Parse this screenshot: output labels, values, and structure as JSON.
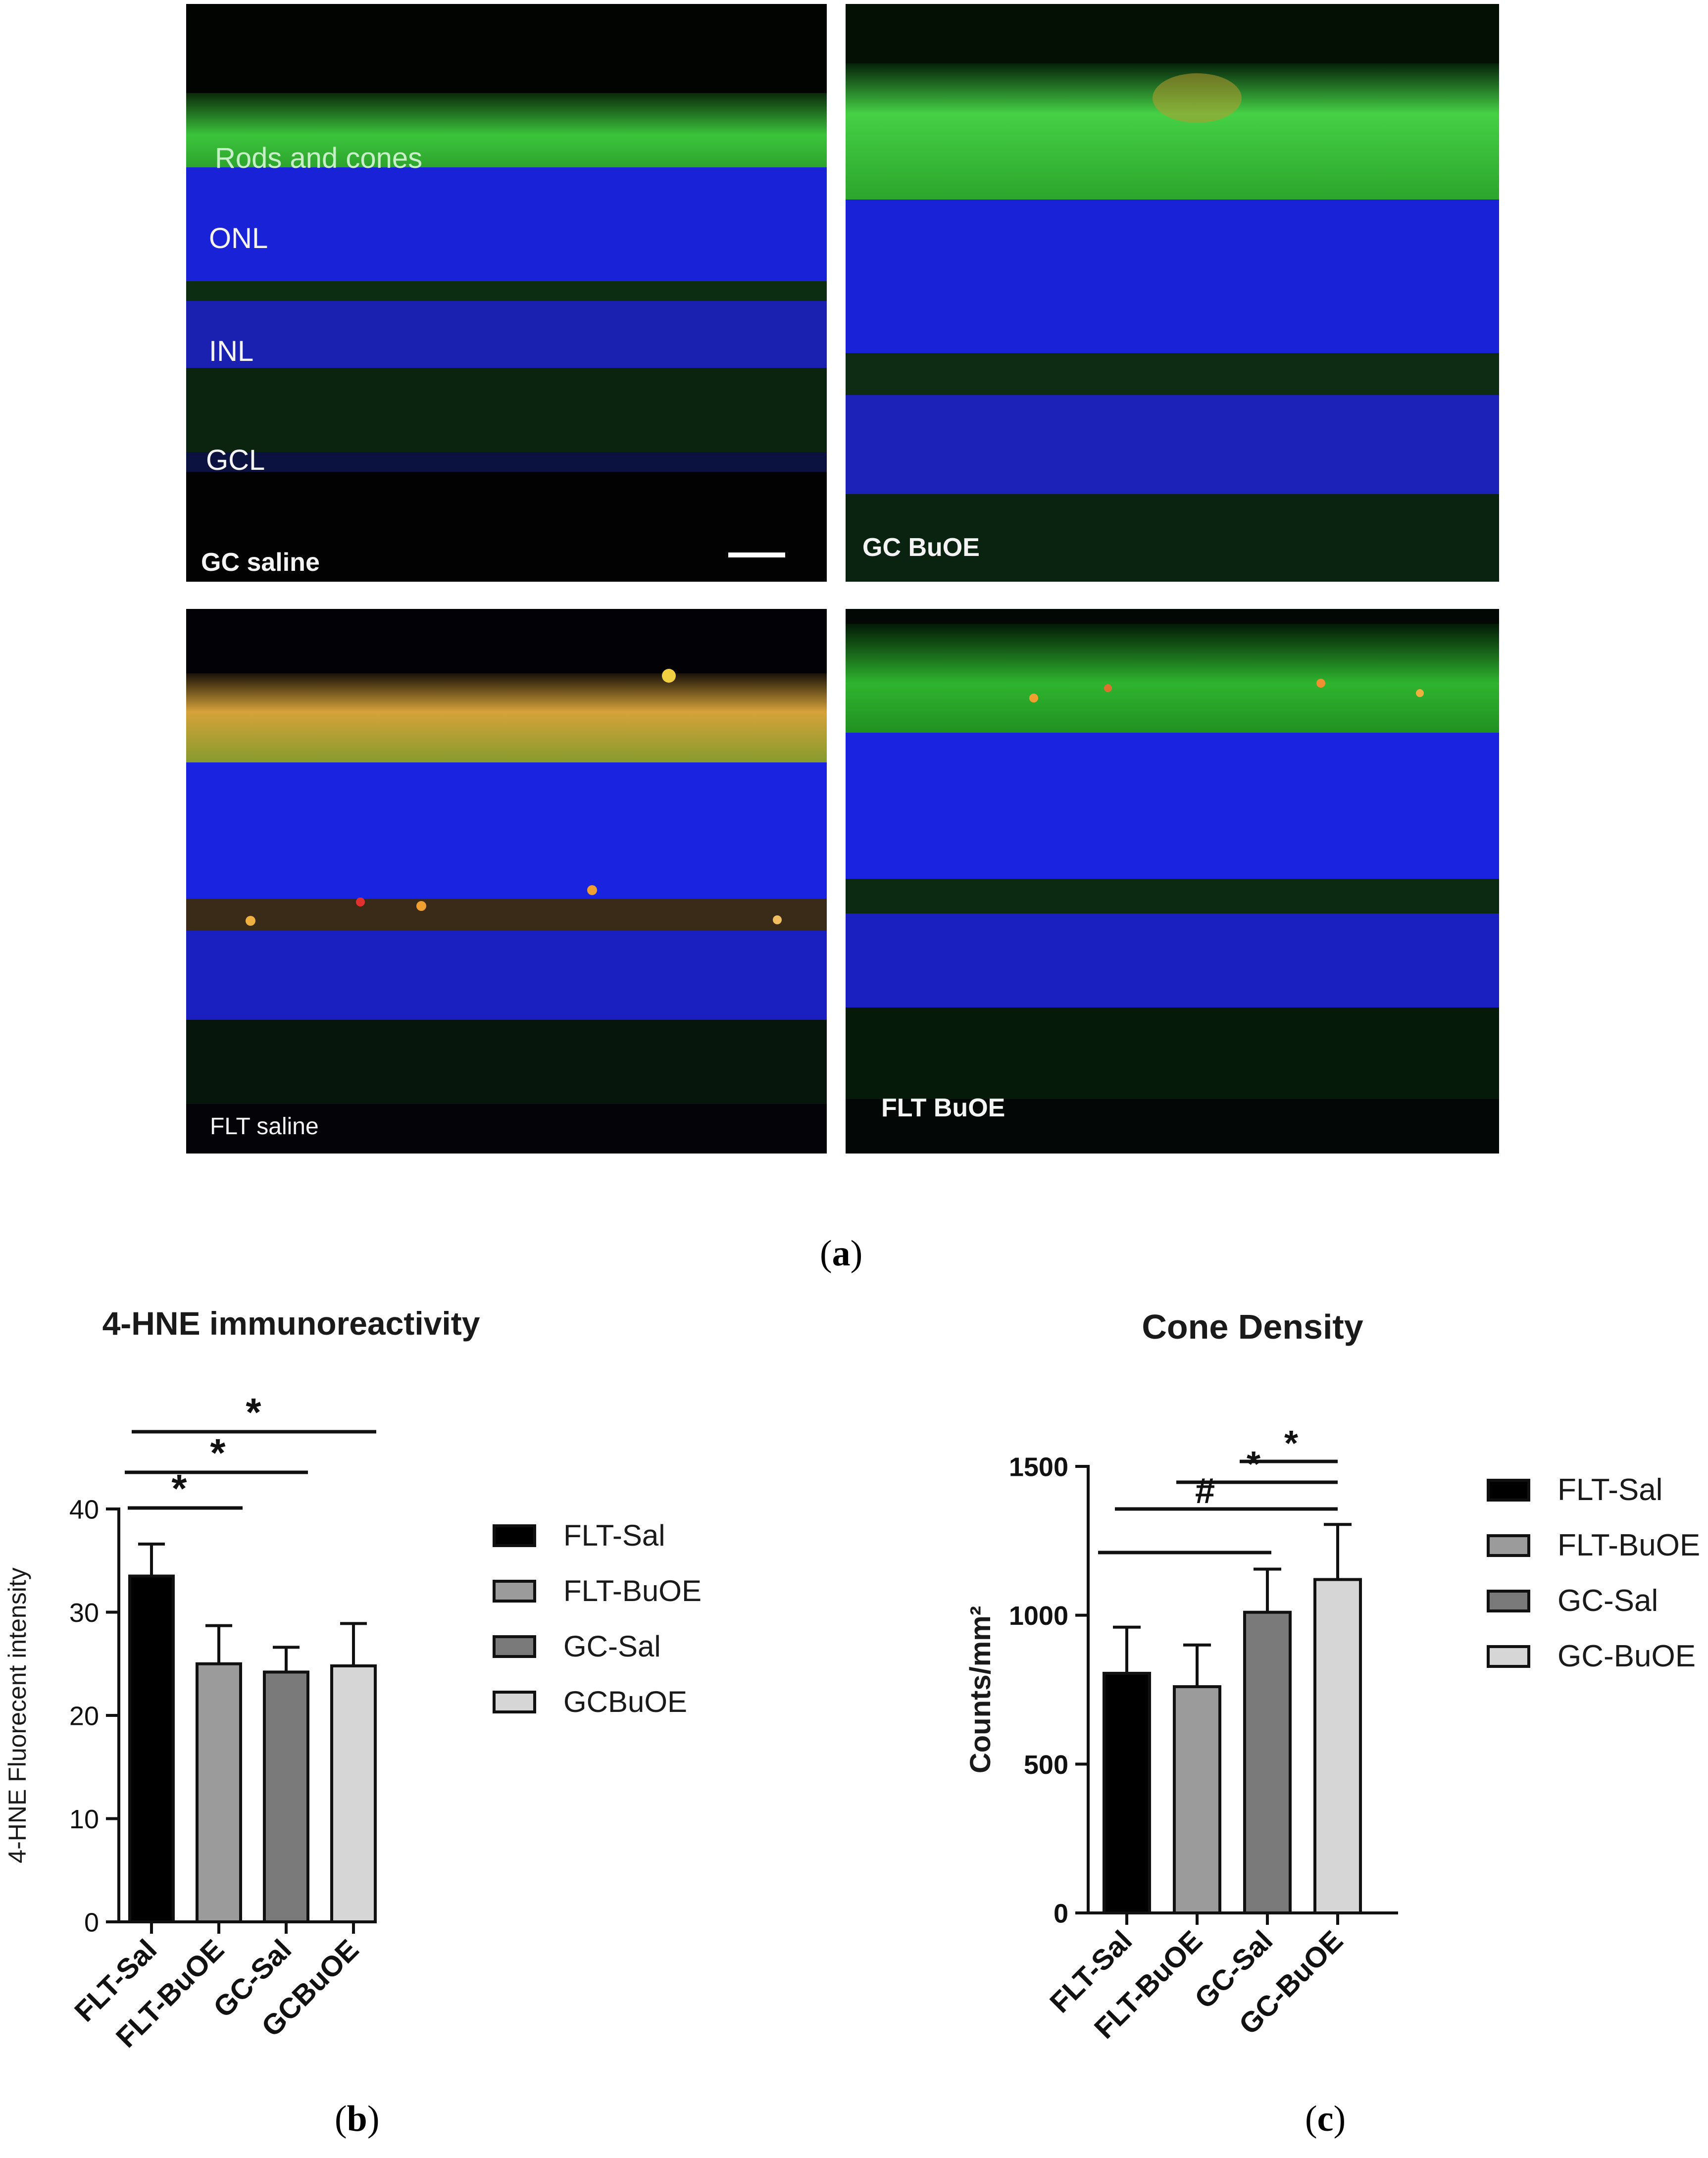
{
  "micrographs": [
    {
      "id": "gc-saline",
      "caption": "GC saline",
      "layer_labels": [
        "Rods and cones",
        "ONL",
        "INL",
        "GCL"
      ]
    },
    {
      "id": "gc-buoe",
      "caption": "GC BuOE",
      "layer_labels": []
    },
    {
      "id": "flt-saline",
      "caption": "FLT saline",
      "layer_labels": []
    },
    {
      "id": "flt-buoe",
      "caption": "FLT BuOE",
      "layer_labels": []
    }
  ],
  "panel_labels": {
    "a": "a",
    "b": "b",
    "c": "c"
  },
  "colors": {
    "green": "#3bd93b",
    "blue": "#1f2de6",
    "orange": "#f0a030",
    "red": "#e03030"
  },
  "chart_data": [
    {
      "type": "bar",
      "title": "4-HNE immunoreactivity",
      "ylabel": "4-HNE Fluorecent intensity",
      "xlabel": "",
      "ylim": [
        0,
        40
      ],
      "yticks": [
        0,
        10,
        20,
        30,
        40
      ],
      "categories": [
        "FLT-Sal",
        "FLT-BuOE",
        "GC-Sal",
        "GCBuOE"
      ],
      "values": [
        33.5,
        25.0,
        24.2,
        24.8
      ],
      "errors": [
        3.1,
        3.7,
        2.4,
        4.1
      ],
      "bar_colors": [
        "#000000",
        "#9b9b9b",
        "#7a7a7a",
        "#d6d6d6"
      ],
      "legend": [
        "FLT-Sal",
        "FLT-BuOE",
        "GC-Sal",
        "GCBuOE"
      ],
      "significance": [
        {
          "from": 0,
          "to": 1,
          "label": "*"
        },
        {
          "from": 0,
          "to": 2,
          "label": "*"
        },
        {
          "from": 0,
          "to": 3,
          "label": "*"
        }
      ]
    },
    {
      "type": "bar",
      "title": "Cone Density",
      "ylabel": "Counts/mm²",
      "xlabel": "",
      "ylim": [
        0,
        1500
      ],
      "yticks": [
        0,
        500,
        1000,
        1500
      ],
      "categories": [
        "FLT-Sal",
        "FLT-BuOE",
        "GC-Sal",
        "GC-BuOE"
      ],
      "values": [
        805,
        760,
        1010,
        1120
      ],
      "errors": [
        155,
        140,
        145,
        185
      ],
      "bar_colors": [
        "#000000",
        "#9b9b9b",
        "#7a7a7a",
        "#d6d6d6"
      ],
      "legend": [
        "FLT-Sal",
        "FLT-BuOE",
        "GC-Sal",
        "GC-BuOE"
      ],
      "significance": [
        {
          "from": 0,
          "to": 2,
          "label": ""
        },
        {
          "from": 0,
          "to": 3,
          "label": "#"
        },
        {
          "from": 1,
          "to": 3,
          "label": "*"
        },
        {
          "from": 2,
          "to": 3,
          "label": "*"
        }
      ]
    }
  ]
}
